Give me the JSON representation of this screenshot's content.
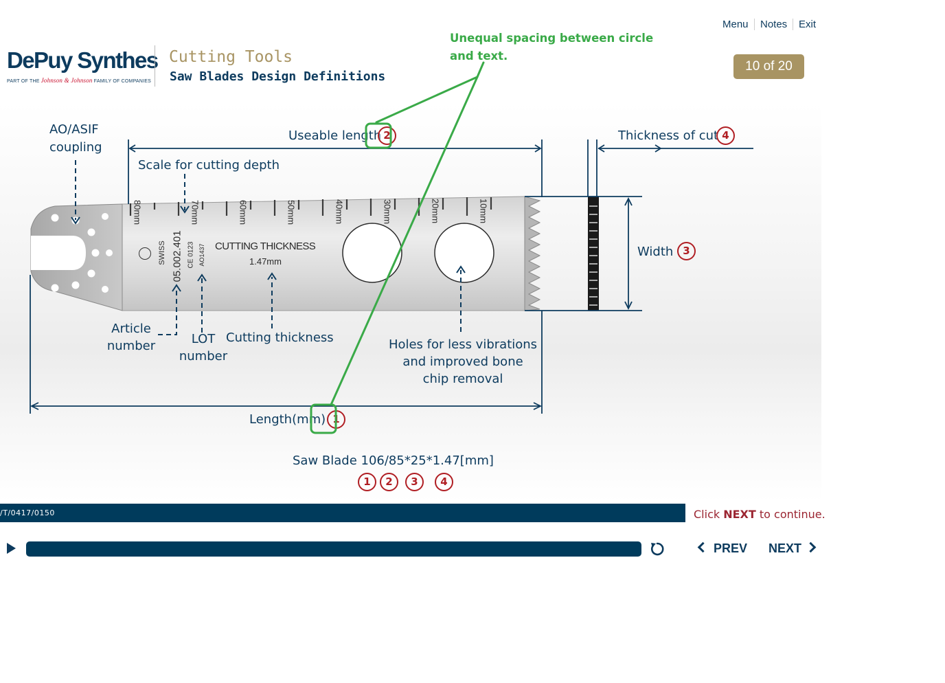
{
  "header": {
    "logo_text": "DePuy Synthes",
    "logo_subtext_pre": "PART OF THE ",
    "logo_subtext_brand": "Johnson & Johnson",
    "logo_subtext_post": " FAMILY OF COMPANIES",
    "title": "Cutting Tools",
    "subtitle": "Saw Blades Design Definitions"
  },
  "top_nav": {
    "menu": "Menu",
    "notes": "Notes",
    "exit": "Exit"
  },
  "page_indicator": "10 of 20",
  "review_comment": "Unequal spacing between circle and text.",
  "diagram": {
    "labels": {
      "coupling_1": "AO/ASIF",
      "coupling_2": "coupling",
      "useable_length": "Useable length",
      "scale": "Scale for cutting depth",
      "thickness_of_cut": "Thickness of cut",
      "width": "Width",
      "article_1": "Article",
      "article_2": "number",
      "lot_1": "LOT",
      "lot_2": "number",
      "cutting_thickness": "Cutting thickness",
      "holes_1": "Holes for less vibrations",
      "holes_2": "and improved bone",
      "holes_3": "chip removal",
      "length": "Length(mm)",
      "saw_blade": "Saw Blade 106/85*25*1.47[mm]"
    },
    "markers": [
      "1",
      "2",
      "3",
      "4"
    ],
    "blade": {
      "scale_marks": [
        "80mm",
        "70mm",
        "60mm",
        "50mm",
        "40mm",
        "30mm",
        "20mm",
        "10mm"
      ],
      "swiss": "SWISS",
      "article_no": "05.002.401",
      "ce": "CE 0123",
      "lot": "AO1437",
      "cutting_thickness_title": "CUTTING THICKNESS",
      "cutting_thickness_value": "1.47mm"
    }
  },
  "footer": {
    "code": "/T/0417/0150",
    "continue_pre": "Click ",
    "continue_next": "NEXT",
    "continue_post": " to continue."
  },
  "player": {
    "prev": "PREV",
    "next": "NEXT"
  },
  "colors": {
    "navy": "#003b5c",
    "gold": "#a89463",
    "marker_red": "#b01e23",
    "comment_green": "#3aaa48"
  }
}
